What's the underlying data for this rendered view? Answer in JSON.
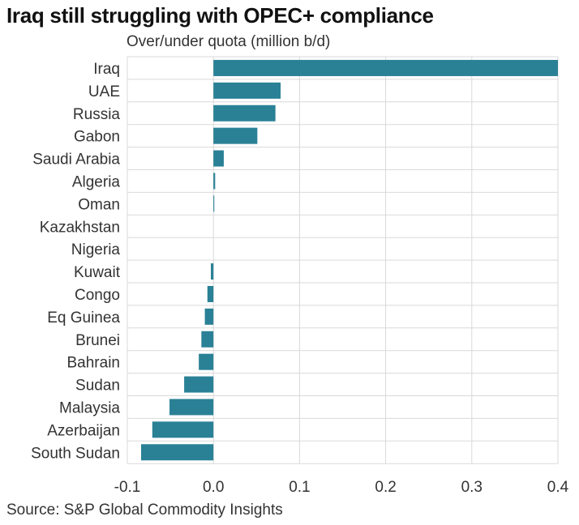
{
  "header": {
    "title": "Iraq still struggling with OPEC+ compliance",
    "subtitle": "Over/under quota (million b/d)"
  },
  "footer": {
    "source": "Source: S&P Global Commodity Insights"
  },
  "colors": {
    "bar": "#2a8196",
    "grid": "#d9d9d9",
    "text": "#333333"
  },
  "chart_data": {
    "type": "bar",
    "orientation": "horizontal",
    "title": "Iraq still struggling with OPEC+ compliance",
    "xlabel": "Over/under quota (million b/d)",
    "ylabel": "",
    "xlim": [
      -0.1,
      0.4
    ],
    "xticks": [
      -0.1,
      0.0,
      0.1,
      0.2,
      0.3,
      0.4
    ],
    "xtick_labels": [
      "-0.1",
      "0.0",
      "0.1",
      "0.2",
      "0.3",
      "0.4"
    ],
    "grid": true,
    "categories": [
      "Iraq",
      "UAE",
      "Russia",
      "Gabon",
      "Saudi Arabia",
      "Algeria",
      "Oman",
      "Kazakhstan",
      "Nigeria",
      "Kuwait",
      "Congo",
      "Eq Guinea",
      "Brunei",
      "Bahrain",
      "Sudan",
      "Malaysia",
      "Azerbaijan",
      "South Sudan"
    ],
    "values": [
      0.4,
      0.078,
      0.072,
      0.051,
      0.012,
      0.002,
      0.001,
      0.0,
      0.0,
      -0.003,
      -0.007,
      -0.01,
      -0.014,
      -0.017,
      -0.034,
      -0.051,
      -0.071,
      -0.084
    ]
  }
}
